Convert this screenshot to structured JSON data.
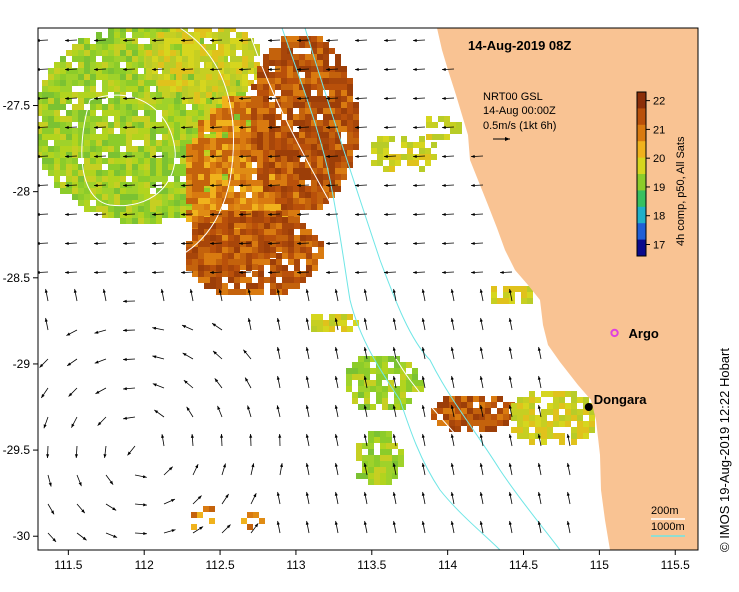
{
  "title": "14-Aug-2019 08Z",
  "current_legend": {
    "line1": "NRT00 GSL",
    "line2": "14-Aug 00:00Z",
    "line3": "0.5m/s (1kt 6h)"
  },
  "colorbar": {
    "label": "4h comp, p50, All Sats",
    "ticks": [
      "22",
      "21",
      "20",
      "19",
      "18",
      "17"
    ],
    "min": 16.6,
    "max": 22.3,
    "colors": [
      "#0a0a8c",
      "#1f5fd6",
      "#1fb0c9",
      "#37c060",
      "#8ccc2a",
      "#d6d61e",
      "#f0b21c",
      "#d97a10",
      "#b9500a",
      "#8c2e08"
    ]
  },
  "isobath_legend": {
    "shelf": "200m",
    "slope": "1000m",
    "shelf_color": "#ffffff",
    "slope_color": "#6fe6e6"
  },
  "axes": {
    "x_ticks": [
      "111.5",
      "112",
      "112.5",
      "113",
      "113.5",
      "114",
      "114.5",
      "115",
      "115.5"
    ],
    "y_ticks": [
      "-27.5",
      "-28",
      "-28.5",
      "-29",
      "-29.5",
      "-30"
    ],
    "x_range": [
      111.3,
      115.65
    ],
    "y_range": [
      -30.08,
      -27.05
    ]
  },
  "places": [
    {
      "name": "Dongara",
      "lon": 114.93,
      "lat": -29.25,
      "marker": "dot"
    },
    {
      "name": "Argo",
      "lon": 115.1,
      "lat": -28.82,
      "marker": "star"
    }
  ],
  "credit": "© IMOS 19-Aug-2019 12:22 Hobart",
  "colors": {
    "land": "#f9c393",
    "ocean": "#ffffff",
    "argo": "#e040e0"
  }
}
